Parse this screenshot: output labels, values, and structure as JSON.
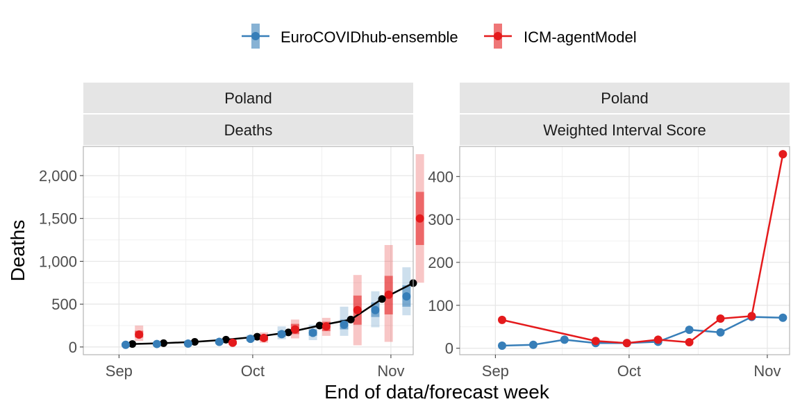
{
  "colors": {
    "ensemble": "#377EB8",
    "agent": "#E41A1C",
    "observed": "#000000",
    "strip_bg": "#E5E5E5",
    "grid": "#E6E6E6",
    "panel_border": "#B3B3B3"
  },
  "legend": {
    "entries": [
      "EuroCOVIDhub-ensemble",
      "ICM-agentModel"
    ]
  },
  "x_axis_title": "End of data/forecast week",
  "chart_data": [
    {
      "type": "line",
      "panel_strip": [
        "Poland",
        "Deaths"
      ],
      "ylabel": "Deaths",
      "x_ticks": [
        "Sep",
        "Oct",
        "Nov"
      ],
      "y_ticks": [
        "0",
        "500",
        "1,000",
        "1,500",
        "2,000"
      ],
      "y_tick_values": [
        0,
        500,
        1000,
        1500,
        2000
      ],
      "ylim": [
        -90,
        2340
      ],
      "x_day_range": [
        -8,
        66
      ],
      "x_tick_days": [
        0,
        30,
        61
      ],
      "grid": true,
      "legend_position": "top",
      "observed": {
        "days": [
          3,
          10,
          17,
          24,
          31,
          38,
          45,
          52,
          59,
          66
        ],
        "values": [
          35,
          45,
          60,
          85,
          120,
          170,
          250,
          320,
          560,
          745
        ]
      },
      "series": [
        {
          "name": "EuroCOVIDhub-ensemble",
          "days": [
            1.5,
            8.5,
            15.5,
            22.5,
            29.5,
            36.5,
            43.5,
            50.5,
            57.5,
            64.5
          ],
          "median": [
            25,
            35,
            40,
            60,
            95,
            150,
            165,
            260,
            430,
            590
          ],
          "inner": [
            [
              15,
              35
            ],
            [
              25,
              45
            ],
            [
              30,
              55
            ],
            [
              45,
              75
            ],
            [
              80,
              115
            ],
            [
              120,
              185
            ],
            [
              130,
              205
            ],
            [
              205,
              320
            ],
            [
              350,
              520
            ],
            [
              470,
              720
            ]
          ],
          "outer": [
            [
              5,
              50
            ],
            [
              15,
              60
            ],
            [
              20,
              75
            ],
            [
              35,
              95
            ],
            [
              65,
              140
            ],
            [
              90,
              240
            ],
            [
              80,
              260
            ],
            [
              130,
              470
            ],
            [
              230,
              650
            ],
            [
              370,
              930
            ]
          ]
        },
        {
          "name": "ICM-agentModel",
          "days": [
            4.5,
            11.5,
            18.5,
            25.5,
            32.5,
            39.5,
            46.5,
            53.5,
            60.5,
            67.5
          ],
          "median": [
            145,
            null,
            null,
            50,
            105,
            205,
            240,
            430,
            610,
            1500
          ],
          "inner": [
            [
              110,
              190
            ],
            null,
            null,
            [
              35,
              70
            ],
            [
              75,
              135
            ],
            [
              150,
              270
            ],
            [
              185,
              295
            ],
            [
              260,
              600
            ],
            [
              380,
              830
            ],
            [
              1190,
              1810
            ]
          ],
          "outer": [
            [
              70,
              250
            ],
            null,
            null,
            [
              25,
              95
            ],
            [
              50,
              170
            ],
            [
              100,
              320
            ],
            [
              130,
              340
            ],
            [
              20,
              840
            ],
            [
              60,
              1190
            ],
            [
              750,
              2250
            ]
          ]
        }
      ]
    },
    {
      "type": "line",
      "panel_strip": [
        "Poland",
        "Weighted Interval Score"
      ],
      "ylabel": "",
      "x_ticks": [
        "Sep",
        "Oct",
        "Nov"
      ],
      "y_ticks": [
        "0",
        "100",
        "200",
        "300",
        "400"
      ],
      "y_tick_values": [
        0,
        100,
        200,
        300,
        400
      ],
      "ylim": [
        -15,
        470
      ],
      "x_day_range": [
        -8,
        66
      ],
      "x_tick_days": [
        0,
        30,
        61
      ],
      "grid": true,
      "series": [
        {
          "name": "EuroCOVIDhub-ensemble",
          "days": [
            1.5,
            8.5,
            15.5,
            22.5,
            29.5,
            36.5,
            43.5,
            50.5,
            57.5,
            64.5
          ],
          "values": [
            6,
            8,
            20,
            12,
            12,
            15,
            43,
            37,
            73,
            71
          ]
        },
        {
          "name": "ICM-agentModel",
          "days": [
            1.5,
            22.5,
            29.5,
            36.5,
            43.5,
            50.5,
            57.5,
            64.5
          ],
          "values": [
            66,
            17,
            12,
            20,
            14,
            69,
            75,
            452
          ]
        }
      ]
    }
  ]
}
